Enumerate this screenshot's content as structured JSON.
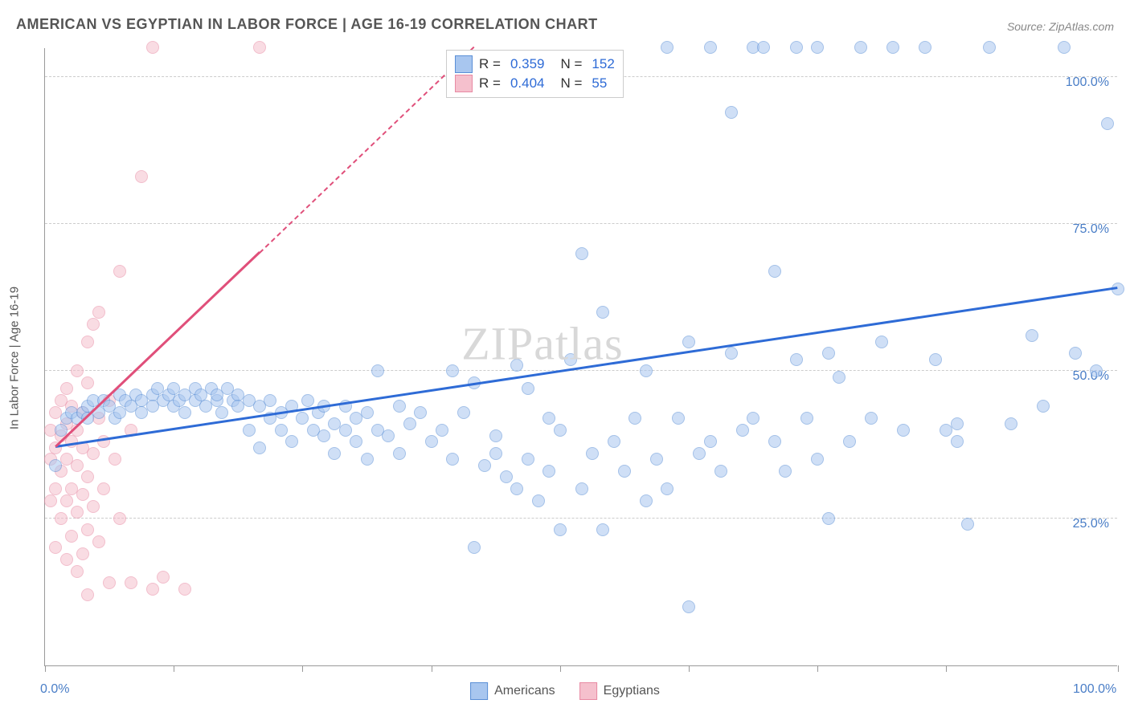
{
  "title": "AMERICAN VS EGYPTIAN IN LABOR FORCE | AGE 16-19 CORRELATION CHART",
  "source": "Source: ZipAtlas.com",
  "watermark": "ZIPatlas",
  "ylabel": "In Labor Force | Age 16-19",
  "chart": {
    "type": "scatter",
    "xlim": [
      0,
      100
    ],
    "ylim": [
      0,
      105
    ],
    "xtick_positions": [
      0,
      12,
      24,
      36,
      48,
      60,
      72,
      84,
      100
    ],
    "xtick_labels": {
      "0": "0.0%",
      "100": "100.0%"
    },
    "ytick_positions": [
      25,
      50,
      75,
      100
    ],
    "ytick_labels": {
      "25": "25.0%",
      "50": "50.0%",
      "75": "75.0%",
      "100": "100.0%"
    },
    "background_color": "#ffffff",
    "grid_color": "#cccccc",
    "axis_color": "#999999",
    "label_color": "#4a7ec7",
    "title_color": "#555555",
    "title_fontsize": 18,
    "label_fontsize": 16,
    "marker_radius": 8,
    "marker_opacity": 0.55,
    "series": {
      "americans": {
        "label": "Americans",
        "fill": "#a8c6ef",
        "stroke": "#5b8fd6",
        "trend_color": "#2e6bd6",
        "R": "0.359",
        "N": "152",
        "trend": {
          "x1": 1,
          "y1": 37,
          "x2": 100,
          "y2": 64
        },
        "points": [
          [
            1,
            34
          ],
          [
            1.5,
            40
          ],
          [
            2,
            42
          ],
          [
            2.5,
            43
          ],
          [
            3,
            42
          ],
          [
            3.5,
            43
          ],
          [
            4,
            44
          ],
          [
            4,
            42
          ],
          [
            4.5,
            45
          ],
          [
            5,
            43
          ],
          [
            5.5,
            45
          ],
          [
            6,
            44
          ],
          [
            6.5,
            42
          ],
          [
            7,
            46
          ],
          [
            7,
            43
          ],
          [
            7.5,
            45
          ],
          [
            8,
            44
          ],
          [
            8.5,
            46
          ],
          [
            9,
            45
          ],
          [
            9,
            43
          ],
          [
            10,
            46
          ],
          [
            10,
            44
          ],
          [
            10.5,
            47
          ],
          [
            11,
            45
          ],
          [
            11.5,
            46
          ],
          [
            12,
            44
          ],
          [
            12,
            47
          ],
          [
            12.5,
            45
          ],
          [
            13,
            46
          ],
          [
            13,
            43
          ],
          [
            14,
            47
          ],
          [
            14,
            45
          ],
          [
            14.5,
            46
          ],
          [
            15,
            44
          ],
          [
            15.5,
            47
          ],
          [
            16,
            45
          ],
          [
            16,
            46
          ],
          [
            16.5,
            43
          ],
          [
            17,
            47
          ],
          [
            17.5,
            45
          ],
          [
            18,
            46
          ],
          [
            18,
            44
          ],
          [
            19,
            45
          ],
          [
            19,
            40
          ],
          [
            20,
            44
          ],
          [
            20,
            37
          ],
          [
            21,
            45
          ],
          [
            21,
            42
          ],
          [
            22,
            43
          ],
          [
            22,
            40
          ],
          [
            23,
            44
          ],
          [
            23,
            38
          ],
          [
            24,
            42
          ],
          [
            24.5,
            45
          ],
          [
            25,
            40
          ],
          [
            25.5,
            43
          ],
          [
            26,
            39
          ],
          [
            26,
            44
          ],
          [
            27,
            41
          ],
          [
            27,
            36
          ],
          [
            28,
            44
          ],
          [
            28,
            40
          ],
          [
            29,
            42
          ],
          [
            29,
            38
          ],
          [
            30,
            43
          ],
          [
            30,
            35
          ],
          [
            31,
            50
          ],
          [
            31,
            40
          ],
          [
            32,
            39
          ],
          [
            33,
            44
          ],
          [
            33,
            36
          ],
          [
            34,
            41
          ],
          [
            35,
            43
          ],
          [
            36,
            38
          ],
          [
            37,
            40
          ],
          [
            38,
            50
          ],
          [
            38,
            35
          ],
          [
            39,
            43
          ],
          [
            40,
            20
          ],
          [
            40,
            48
          ],
          [
            41,
            34
          ],
          [
            42,
            36
          ],
          [
            42,
            39
          ],
          [
            43,
            32
          ],
          [
            44,
            51
          ],
          [
            44,
            30
          ],
          [
            45,
            35
          ],
          [
            45,
            47
          ],
          [
            46,
            28
          ],
          [
            47,
            42
          ],
          [
            47,
            33
          ],
          [
            48,
            40
          ],
          [
            48,
            23
          ],
          [
            49,
            52
          ],
          [
            50,
            70
          ],
          [
            50,
            30
          ],
          [
            51,
            36
          ],
          [
            52,
            60
          ],
          [
            52,
            23
          ],
          [
            53,
            38
          ],
          [
            54,
            33
          ],
          [
            55,
            42
          ],
          [
            56,
            28
          ],
          [
            56,
            50
          ],
          [
            57,
            35
          ],
          [
            58,
            105
          ],
          [
            58,
            30
          ],
          [
            59,
            42
          ],
          [
            60,
            10
          ],
          [
            60,
            55
          ],
          [
            61,
            36
          ],
          [
            62,
            105
          ],
          [
            62,
            38
          ],
          [
            63,
            33
          ],
          [
            64,
            94
          ],
          [
            64,
            53
          ],
          [
            65,
            40
          ],
          [
            66,
            105
          ],
          [
            66,
            42
          ],
          [
            67,
            105
          ],
          [
            68,
            38
          ],
          [
            68,
            67
          ],
          [
            69,
            33
          ],
          [
            70,
            105
          ],
          [
            70,
            52
          ],
          [
            71,
            42
          ],
          [
            72,
            105
          ],
          [
            72,
            35
          ],
          [
            73,
            53
          ],
          [
            73,
            25
          ],
          [
            74,
            49
          ],
          [
            75,
            38
          ],
          [
            76,
            105
          ],
          [
            77,
            42
          ],
          [
            78,
            55
          ],
          [
            79,
            105
          ],
          [
            80,
            40
          ],
          [
            82,
            105
          ],
          [
            83,
            52
          ],
          [
            84,
            40
          ],
          [
            85,
            41
          ],
          [
            85,
            38
          ],
          [
            86,
            24
          ],
          [
            88,
            105
          ],
          [
            90,
            41
          ],
          [
            92,
            56
          ],
          [
            93,
            44
          ],
          [
            95,
            105
          ],
          [
            96,
            53
          ],
          [
            98,
            50
          ],
          [
            99,
            92
          ],
          [
            100,
            64
          ]
        ]
      },
      "egyptians": {
        "label": "Egyptians",
        "fill": "#f5c0cd",
        "stroke": "#e88aa3",
        "trend_color": "#e04f7a",
        "R": "0.404",
        "N": "55",
        "trend_solid": {
          "x1": 1,
          "y1": 37,
          "x2": 20,
          "y2": 70
        },
        "trend_dashed": {
          "x1": 20,
          "y1": 70,
          "x2": 40,
          "y2": 105
        },
        "points": [
          [
            0.5,
            28
          ],
          [
            0.5,
            35
          ],
          [
            0.5,
            40
          ],
          [
            1,
            20
          ],
          [
            1,
            30
          ],
          [
            1,
            37
          ],
          [
            1,
            43
          ],
          [
            1.5,
            25
          ],
          [
            1.5,
            33
          ],
          [
            1.5,
            39
          ],
          [
            1.5,
            45
          ],
          [
            2,
            18
          ],
          [
            2,
            28
          ],
          [
            2,
            35
          ],
          [
            2,
            41
          ],
          [
            2,
            47
          ],
          [
            2.5,
            22
          ],
          [
            2.5,
            30
          ],
          [
            2.5,
            38
          ],
          [
            2.5,
            44
          ],
          [
            3,
            16
          ],
          [
            3,
            26
          ],
          [
            3,
            34
          ],
          [
            3,
            40
          ],
          [
            3,
            50
          ],
          [
            3.5,
            19
          ],
          [
            3.5,
            29
          ],
          [
            3.5,
            37
          ],
          [
            3.5,
            43
          ],
          [
            4,
            12
          ],
          [
            4,
            23
          ],
          [
            4,
            32
          ],
          [
            4,
            48
          ],
          [
            4,
            55
          ],
          [
            4.5,
            27
          ],
          [
            4.5,
            36
          ],
          [
            4.5,
            58
          ],
          [
            5,
            21
          ],
          [
            5,
            42
          ],
          [
            5,
            60
          ],
          [
            5.5,
            30
          ],
          [
            5.5,
            38
          ],
          [
            6,
            14
          ],
          [
            6,
            45
          ],
          [
            6.5,
            35
          ],
          [
            7,
            67
          ],
          [
            7,
            25
          ],
          [
            8,
            14
          ],
          [
            8,
            40
          ],
          [
            9,
            83
          ],
          [
            10,
            13
          ],
          [
            10,
            105
          ],
          [
            11,
            15
          ],
          [
            13,
            13
          ],
          [
            20,
            105
          ]
        ]
      }
    }
  },
  "legend_top_rows": [
    {
      "swatch_fill": "#a8c6ef",
      "swatch_stroke": "#5b8fd6",
      "r_label": "R =",
      "r_val": "0.359",
      "n_label": "N =",
      "n_val": "152"
    },
    {
      "swatch_fill": "#f5c0cd",
      "swatch_stroke": "#e88aa3",
      "r_label": "R =",
      "r_val": "0.404",
      "n_label": "N =",
      "n_val": "55"
    }
  ],
  "legend_bottom": [
    {
      "swatch_fill": "#a8c6ef",
      "swatch_stroke": "#5b8fd6",
      "label": "Americans"
    },
    {
      "swatch_fill": "#f5c0cd",
      "swatch_stroke": "#e88aa3",
      "label": "Egyptians"
    }
  ]
}
